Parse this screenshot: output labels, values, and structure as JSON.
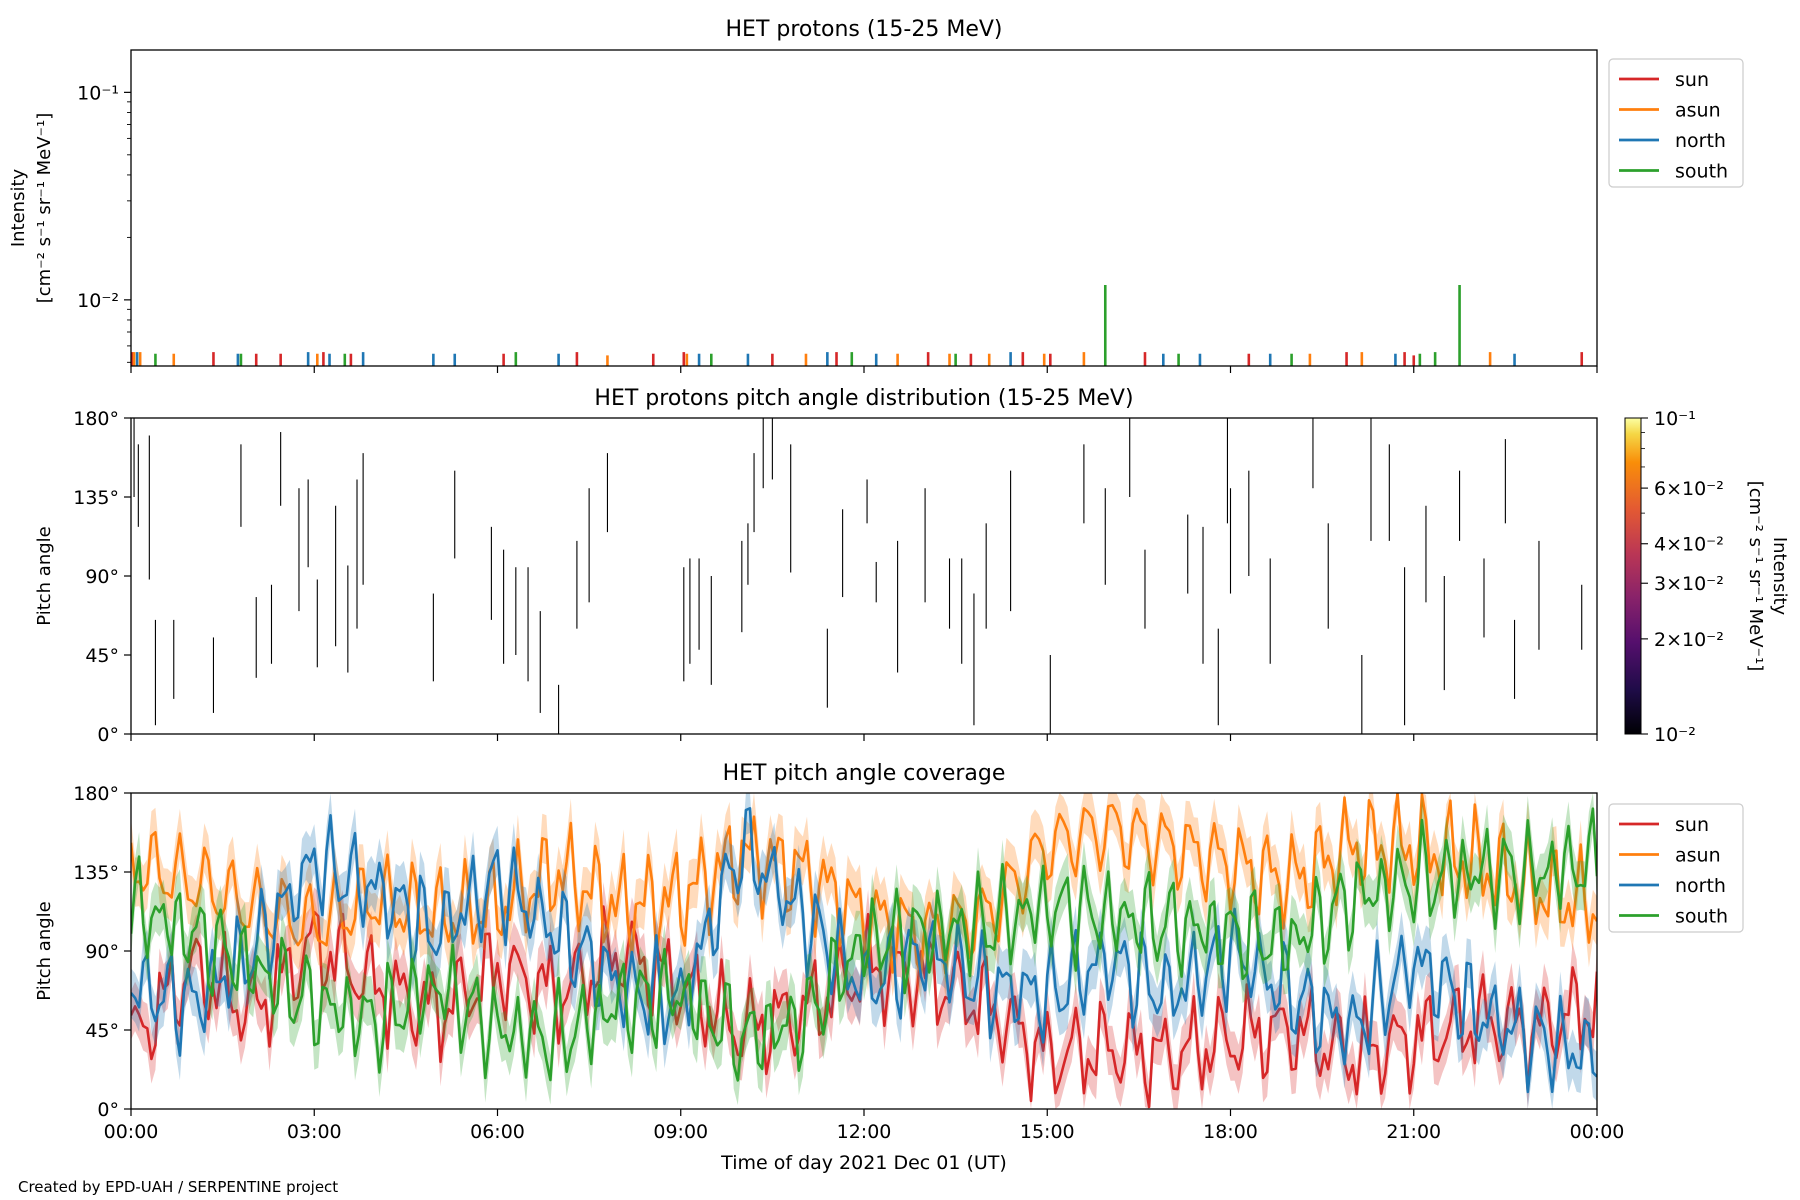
{
  "figure": {
    "credit": "Created by EPD-UAH / SERPENTINE project",
    "xlabel": "Time of day 2021 Dec 01 (UT)",
    "x_ticks": [
      "00:00",
      "03:00",
      "06:00",
      "09:00",
      "12:00",
      "15:00",
      "18:00",
      "21:00",
      "00:00"
    ],
    "colors": {
      "sun": "#d62728",
      "asun": "#ff7f0e",
      "north": "#1f77b4",
      "south": "#2ca02c"
    }
  },
  "chart_data": [
    {
      "type": "line",
      "title": "HET protons (15-25 MeV)",
      "ylabel": [
        "Intensity",
        "[cm⁻² s⁻¹ sr⁻¹ MeV⁻¹]"
      ],
      "yscale": "log",
      "ylim": [
        0.0048,
        0.16
      ],
      "yticks": [
        "10⁻¹",
        "10⁻²"
      ],
      "xlim_hours": [
        0,
        24
      ],
      "legend": {
        "position": "outside-right",
        "entries": [
          "sun",
          "asun",
          "north",
          "south"
        ]
      },
      "series": [
        {
          "name": "sun",
          "color": "#d62728",
          "spikes": [
            {
              "t": 0.02,
              "v": 0.0056
            },
            {
              "t": 1.35,
              "v": 0.0056
            },
            {
              "t": 2.05,
              "v": 0.0055
            },
            {
              "t": 2.45,
              "v": 0.0055
            },
            {
              "t": 3.15,
              "v": 0.0056
            },
            {
              "t": 3.6,
              "v": 0.0055
            },
            {
              "t": 6.1,
              "v": 0.0055
            },
            {
              "t": 7.3,
              "v": 0.0056
            },
            {
              "t": 8.55,
              "v": 0.0055
            },
            {
              "t": 9.05,
              "v": 0.0056
            },
            {
              "t": 10.5,
              "v": 0.0055
            },
            {
              "t": 11.55,
              "v": 0.0056
            },
            {
              "t": 13.05,
              "v": 0.0056
            },
            {
              "t": 13.75,
              "v": 0.0055
            },
            {
              "t": 14.6,
              "v": 0.0056
            },
            {
              "t": 15.05,
              "v": 0.0055
            },
            {
              "t": 16.6,
              "v": 0.0056
            },
            {
              "t": 18.3,
              "v": 0.0055
            },
            {
              "t": 19.9,
              "v": 0.0056
            },
            {
              "t": 20.85,
              "v": 0.0056
            },
            {
              "t": 21.0,
              "v": 0.0054
            },
            {
              "t": 23.75,
              "v": 0.0056
            }
          ]
        },
        {
          "name": "asun",
          "color": "#ff7f0e",
          "spikes": [
            {
              "t": 0.05,
              "v": 0.0056
            },
            {
              "t": 0.15,
              "v": 0.0056
            },
            {
              "t": 0.7,
              "v": 0.0055
            },
            {
              "t": 3.05,
              "v": 0.0055
            },
            {
              "t": 7.8,
              "v": 0.0054
            },
            {
              "t": 9.1,
              "v": 0.0055
            },
            {
              "t": 11.05,
              "v": 0.0055
            },
            {
              "t": 12.55,
              "v": 0.0055
            },
            {
              "t": 13.4,
              "v": 0.0055
            },
            {
              "t": 14.05,
              "v": 0.0055
            },
            {
              "t": 14.95,
              "v": 0.0055
            },
            {
              "t": 15.6,
              "v": 0.0056
            },
            {
              "t": 19.3,
              "v": 0.0055
            },
            {
              "t": 20.15,
              "v": 0.0056
            },
            {
              "t": 22.25,
              "v": 0.0056
            }
          ]
        },
        {
          "name": "north",
          "color": "#1f77b4",
          "spikes": [
            {
              "t": 0.1,
              "v": 0.0056
            },
            {
              "t": 1.75,
              "v": 0.0055
            },
            {
              "t": 2.9,
              "v": 0.0056
            },
            {
              "t": 3.25,
              "v": 0.0055
            },
            {
              "t": 3.8,
              "v": 0.0056
            },
            {
              "t": 4.95,
              "v": 0.0055
            },
            {
              "t": 5.3,
              "v": 0.0055
            },
            {
              "t": 7.0,
              "v": 0.0055
            },
            {
              "t": 9.3,
              "v": 0.0055
            },
            {
              "t": 10.1,
              "v": 0.0055
            },
            {
              "t": 11.4,
              "v": 0.0056
            },
            {
              "t": 12.2,
              "v": 0.0055
            },
            {
              "t": 14.4,
              "v": 0.0056
            },
            {
              "t": 16.9,
              "v": 0.0055
            },
            {
              "t": 17.5,
              "v": 0.0055
            },
            {
              "t": 18.65,
              "v": 0.0055
            },
            {
              "t": 20.7,
              "v": 0.0055
            },
            {
              "t": 22.65,
              "v": 0.0055
            }
          ]
        },
        {
          "name": "south",
          "color": "#2ca02c",
          "spikes": [
            {
              "t": 0.4,
              "v": 0.0055
            },
            {
              "t": 1.8,
              "v": 0.0055
            },
            {
              "t": 3.5,
              "v": 0.0055
            },
            {
              "t": 6.3,
              "v": 0.0056
            },
            {
              "t": 9.5,
              "v": 0.0055
            },
            {
              "t": 11.8,
              "v": 0.0056
            },
            {
              "t": 13.5,
              "v": 0.0055
            },
            {
              "t": 15.95,
              "v": 0.0118
            },
            {
              "t": 17.15,
              "v": 0.0055
            },
            {
              "t": 19.0,
              "v": 0.0055
            },
            {
              "t": 21.1,
              "v": 0.0055
            },
            {
              "t": 21.35,
              "v": 0.0056
            },
            {
              "t": 21.75,
              "v": 0.0118
            }
          ]
        }
      ]
    },
    {
      "type": "heatmap",
      "title": "HET protons pitch angle distribution (15-25 MeV)",
      "ylabel": "Pitch angle",
      "yticks": [
        "0°",
        "45°",
        "90°",
        "135°",
        "180°"
      ],
      "ylim_deg": [
        0,
        180
      ],
      "colorbar": {
        "label": [
          "Intensity",
          "[cm⁻² s⁻¹ sr⁻¹ MeV⁻¹]"
        ],
        "scale": "log",
        "range": [
          0.01,
          0.1
        ],
        "ticks": [
          "10⁻²",
          "2×10⁻²",
          "3×10⁻²",
          "4×10⁻²",
          "6×10⁻²",
          "10⁻¹"
        ],
        "colormap": "inferno"
      },
      "segments_note": "thin vertical segments, [hour, pa_low, pa_high]",
      "segments": [
        [
          0.05,
          135,
          180
        ],
        [
          0.12,
          118,
          165
        ],
        [
          0.3,
          88,
          170
        ],
        [
          0.4,
          5,
          65
        ],
        [
          0.7,
          20,
          65
        ],
        [
          1.35,
          12,
          55
        ],
        [
          1.8,
          118,
          165
        ],
        [
          2.05,
          32,
          78
        ],
        [
          2.3,
          40,
          85
        ],
        [
          2.45,
          130,
          172
        ],
        [
          2.75,
          70,
          140
        ],
        [
          2.9,
          95,
          145
        ],
        [
          3.05,
          38,
          88
        ],
        [
          3.35,
          50,
          130
        ],
        [
          3.55,
          35,
          96
        ],
        [
          3.7,
          60,
          145
        ],
        [
          3.8,
          85,
          160
        ],
        [
          4.95,
          30,
          80
        ],
        [
          5.3,
          100,
          150
        ],
        [
          5.9,
          65,
          118
        ],
        [
          6.1,
          40,
          105
        ],
        [
          6.3,
          45,
          95
        ],
        [
          6.5,
          30,
          95
        ],
        [
          6.7,
          12,
          70
        ],
        [
          7.0,
          0,
          28
        ],
        [
          7.3,
          60,
          110
        ],
        [
          7.5,
          75,
          140
        ],
        [
          7.8,
          115,
          160
        ],
        [
          9.05,
          30,
          95
        ],
        [
          9.15,
          40,
          100
        ],
        [
          9.3,
          48,
          100
        ],
        [
          9.5,
          28,
          90
        ],
        [
          10.0,
          58,
          110
        ],
        [
          10.1,
          85,
          120
        ],
        [
          10.2,
          115,
          160
        ],
        [
          10.35,
          140,
          180
        ],
        [
          10.5,
          145,
          180
        ],
        [
          10.8,
          92,
          165
        ],
        [
          11.4,
          15,
          60
        ],
        [
          11.65,
          78,
          128
        ],
        [
          12.05,
          120,
          145
        ],
        [
          12.2,
          75,
          98
        ],
        [
          12.55,
          35,
          110
        ],
        [
          13.0,
          75,
          140
        ],
        [
          13.4,
          60,
          100
        ],
        [
          13.6,
          40,
          100
        ],
        [
          13.8,
          5,
          80
        ],
        [
          14.0,
          60,
          120
        ],
        [
          14.4,
          70,
          150
        ],
        [
          15.05,
          0,
          45
        ],
        [
          15.6,
          120,
          165
        ],
        [
          15.95,
          85,
          140
        ],
        [
          16.35,
          135,
          180
        ],
        [
          16.6,
          60,
          105
        ],
        [
          17.3,
          80,
          125
        ],
        [
          17.55,
          40,
          118
        ],
        [
          17.8,
          5,
          60
        ],
        [
          17.95,
          120,
          180
        ],
        [
          18.0,
          80,
          140
        ],
        [
          18.3,
          90,
          150
        ],
        [
          18.65,
          40,
          100
        ],
        [
          19.35,
          140,
          180
        ],
        [
          19.6,
          60,
          120
        ],
        [
          20.15,
          0,
          45
        ],
        [
          20.3,
          110,
          180
        ],
        [
          20.6,
          110,
          165
        ],
        [
          20.85,
          5,
          95
        ],
        [
          21.2,
          75,
          130
        ],
        [
          21.5,
          25,
          90
        ],
        [
          21.75,
          110,
          150
        ],
        [
          22.15,
          55,
          100
        ],
        [
          22.5,
          120,
          168
        ],
        [
          22.65,
          20,
          65
        ],
        [
          23.05,
          48,
          110
        ],
        [
          23.75,
          48,
          85
        ]
      ]
    },
    {
      "type": "line",
      "title": "HET pitch angle coverage",
      "ylabel": "Pitch angle",
      "yticks": [
        "0°",
        "45°",
        "90°",
        "135°",
        "180°"
      ],
      "ylim_deg": [
        0,
        180
      ],
      "xlim_hours": [
        0,
        24
      ],
      "legend": {
        "position": "outside-right",
        "entries": [
          "sun",
          "asun",
          "north",
          "south"
        ]
      },
      "band_halfwidth_deg": 14,
      "series": [
        {
          "name": "sun",
          "color": "#d62728",
          "x_hours": [
            0,
            1,
            2,
            3,
            4,
            5,
            6,
            7,
            8,
            9,
            10,
            11,
            12,
            13,
            14,
            15,
            16,
            17,
            18,
            19,
            20,
            21,
            22,
            23,
            24
          ],
          "values": [
            38,
            80,
            55,
            95,
            70,
            55,
            80,
            65,
            90,
            70,
            45,
            55,
            80,
            75,
            60,
            30,
            35,
            30,
            40,
            45,
            30,
            40,
            50,
            45,
            60
          ]
        },
        {
          "name": "asun",
          "color": "#ff7f0e",
          "x_hours": [
            0,
            1,
            2,
            3,
            4,
            5,
            6,
            7,
            8,
            9,
            10,
            11,
            12,
            13,
            14,
            15,
            16,
            17,
            18,
            19,
            20,
            21,
            22,
            23,
            24
          ],
          "values": [
            140,
            130,
            115,
            105,
            120,
            110,
            115,
            135,
            115,
            120,
            145,
            135,
            110,
            100,
            110,
            150,
            160,
            150,
            140,
            130,
            150,
            150,
            140,
            125,
            115
          ]
        },
        {
          "name": "north",
          "color": "#1f77b4",
          "x_hours": [
            0,
            1,
            2,
            3,
            4,
            5,
            6,
            7,
            8,
            9,
            10,
            11,
            12,
            13,
            14,
            15,
            16,
            17,
            18,
            19,
            20,
            21,
            22,
            23,
            24
          ],
          "values": [
            70,
            60,
            90,
            140,
            125,
            100,
            130,
            100,
            70,
            60,
            150,
            110,
            70,
            90,
            70,
            65,
            85,
            65,
            90,
            65,
            45,
            85,
            55,
            40,
            30
          ]
        },
        {
          "name": "south",
          "color": "#2ca02c",
          "x_hours": [
            0,
            1,
            2,
            3,
            4,
            5,
            6,
            7,
            8,
            9,
            10,
            11,
            12,
            13,
            14,
            15,
            16,
            17,
            18,
            19,
            20,
            21,
            22,
            23,
            24
          ],
          "values": [
            115,
            100,
            80,
            60,
            50,
            70,
            45,
            40,
            60,
            65,
            40,
            50,
            95,
            100,
            105,
            115,
            110,
            105,
            100,
            95,
            120,
            130,
            135,
            135,
            140
          ]
        }
      ]
    }
  ]
}
